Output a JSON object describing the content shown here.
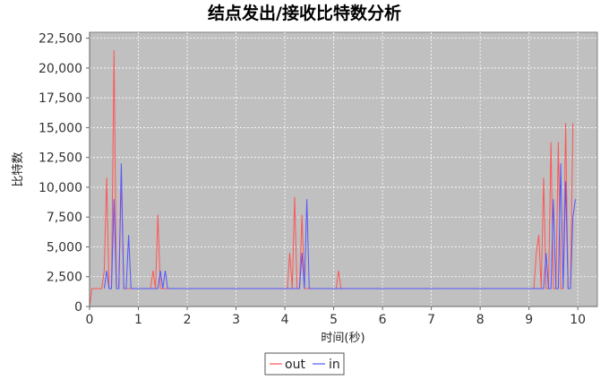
{
  "chart_data": {
    "type": "line",
    "title": "结点发出/接收比特数分析",
    "xlabel": "时间(秒)",
    "ylabel": "比特数",
    "xlim": [
      0,
      10.4
    ],
    "ylim": [
      0,
      23000
    ],
    "x_ticks": [
      0,
      1,
      2,
      3,
      4,
      5,
      6,
      7,
      8,
      9,
      10
    ],
    "y_ticks": [
      0,
      2500,
      5000,
      7500,
      10000,
      12500,
      15000,
      17500,
      20000,
      22500
    ],
    "x_tick_labels": [
      "0",
      "1",
      "2",
      "3",
      "4",
      "5",
      "6",
      "7",
      "8",
      "9",
      "10"
    ],
    "y_tick_labels": [
      "0",
      "2,500",
      "5,000",
      "7,500",
      "10,000",
      "12,500",
      "15,000",
      "17,500",
      "20,000",
      "22,500"
    ],
    "grid": true,
    "legend_position": "bottom-center",
    "plot_background": "#c0c0c0",
    "series": [
      {
        "name": "out",
        "color": "#ff5555",
        "x": [
          0.0,
          0.05,
          0.25,
          0.3,
          0.35,
          0.4,
          0.45,
          0.5,
          0.55,
          0.6,
          0.65,
          0.7,
          0.75,
          1.25,
          1.3,
          1.35,
          1.4,
          1.45,
          4.05,
          4.1,
          4.15,
          4.2,
          4.25,
          4.3,
          4.35,
          4.4,
          4.45,
          5.05,
          5.1,
          5.15,
          9.1,
          9.15,
          9.2,
          9.25,
          9.3,
          9.35,
          9.4,
          9.45,
          9.5,
          9.55,
          9.6,
          9.65,
          9.7,
          9.75,
          9.8,
          9.85,
          9.9
        ],
        "y": [
          0,
          1500,
          1500,
          3000,
          10800,
          1500,
          1500,
          21500,
          1500,
          1500,
          11000,
          1500,
          1500,
          1500,
          3000,
          1500,
          7700,
          1500,
          1500,
          4500,
          1500,
          9200,
          1500,
          1500,
          7700,
          1500,
          1500,
          1500,
          3000,
          1500,
          1500,
          4500,
          6000,
          1500,
          10800,
          1500,
          1500,
          13800,
          1500,
          1500,
          13800,
          1500,
          1500,
          15400,
          1500,
          1500,
          15400
        ]
      },
      {
        "name": "in",
        "color": "#5555ff",
        "x": [
          0.3,
          0.35,
          0.4,
          0.45,
          0.5,
          0.55,
          0.6,
          0.65,
          0.7,
          0.75,
          0.8,
          0.85,
          1.4,
          1.45,
          1.5,
          1.55,
          1.6,
          4.25,
          4.3,
          4.35,
          4.4,
          4.45,
          4.5,
          4.55,
          9.25,
          9.3,
          9.35,
          9.4,
          9.45,
          9.5,
          9.55,
          9.6,
          9.65,
          9.7,
          9.75,
          9.8,
          9.85,
          9.9,
          9.95
        ],
        "y": [
          1500,
          3000,
          1500,
          1500,
          9000,
          1500,
          1500,
          12000,
          1500,
          1500,
          6000,
          1500,
          1500,
          3000,
          1500,
          3000,
          1500,
          1500,
          1500,
          4500,
          1500,
          9000,
          1500,
          1500,
          1500,
          1500,
          4500,
          1500,
          1500,
          9000,
          1500,
          1500,
          12000,
          1500,
          10500,
          1500,
          1500,
          7500,
          9000
        ]
      }
    ]
  }
}
